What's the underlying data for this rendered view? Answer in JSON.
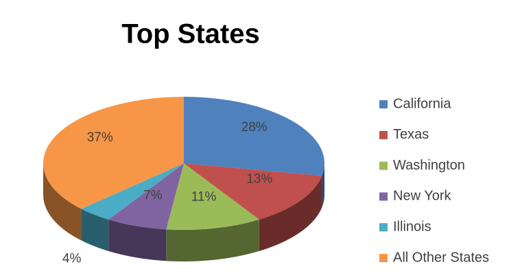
{
  "chart_data": {
    "type": "pie",
    "title": "Top States",
    "categories": [
      "California",
      "Texas",
      "Washington",
      "New York",
      "Illinois",
      "All Other States"
    ],
    "values": [
      28,
      13,
      11,
      7,
      4,
      37
    ],
    "value_labels": [
      "28%",
      "13%",
      "11%",
      "7%",
      "4%",
      "37%"
    ],
    "colors": [
      "#4f81bd",
      "#c0504d",
      "#9bbb59",
      "#8064a2",
      "#4bacc6",
      "#f79646"
    ],
    "legend": "right"
  }
}
